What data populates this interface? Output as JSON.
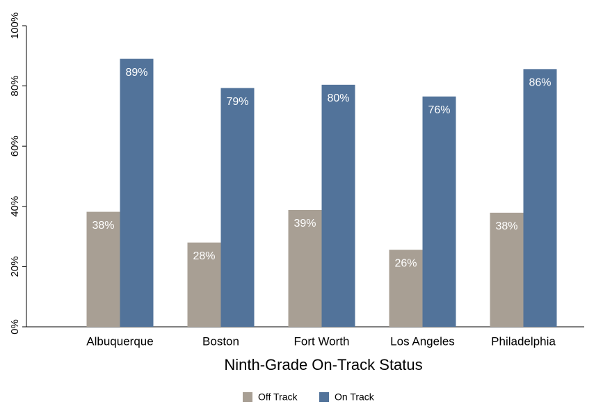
{
  "chart_data": {
    "type": "bar",
    "x_label": "Ninth-Grade On-Track Status",
    "categories": [
      "Albuquerque",
      "Boston",
      "Fort Worth",
      "Los Angeles",
      "Philadelphia"
    ],
    "series": [
      {
        "name": "Off Track",
        "color": "#a89f94",
        "values": [
          38.2,
          28,
          38.8,
          25.6,
          37.9
        ],
        "value_labels": [
          "38%",
          "28%",
          "39%",
          "26%",
          "38%"
        ]
      },
      {
        "name": "On Track",
        "color": "#52739a",
        "values": [
          89,
          79.3,
          80.4,
          76.5,
          85.6
        ],
        "value_labels": [
          "89%",
          "79%",
          "80%",
          "76%",
          "86%"
        ]
      }
    ],
    "ylim": [
      0,
      100
    ],
    "yticks": [
      {
        "value": 0,
        "label": "0%"
      },
      {
        "value": 20,
        "label": "20%"
      },
      {
        "value": 40,
        "label": "40%"
      },
      {
        "value": 60,
        "label": "60%"
      },
      {
        "value": 80,
        "label": "80%"
      },
      {
        "value": 100,
        "label": "100%"
      }
    ],
    "legend": "bottom",
    "grid": false
  }
}
